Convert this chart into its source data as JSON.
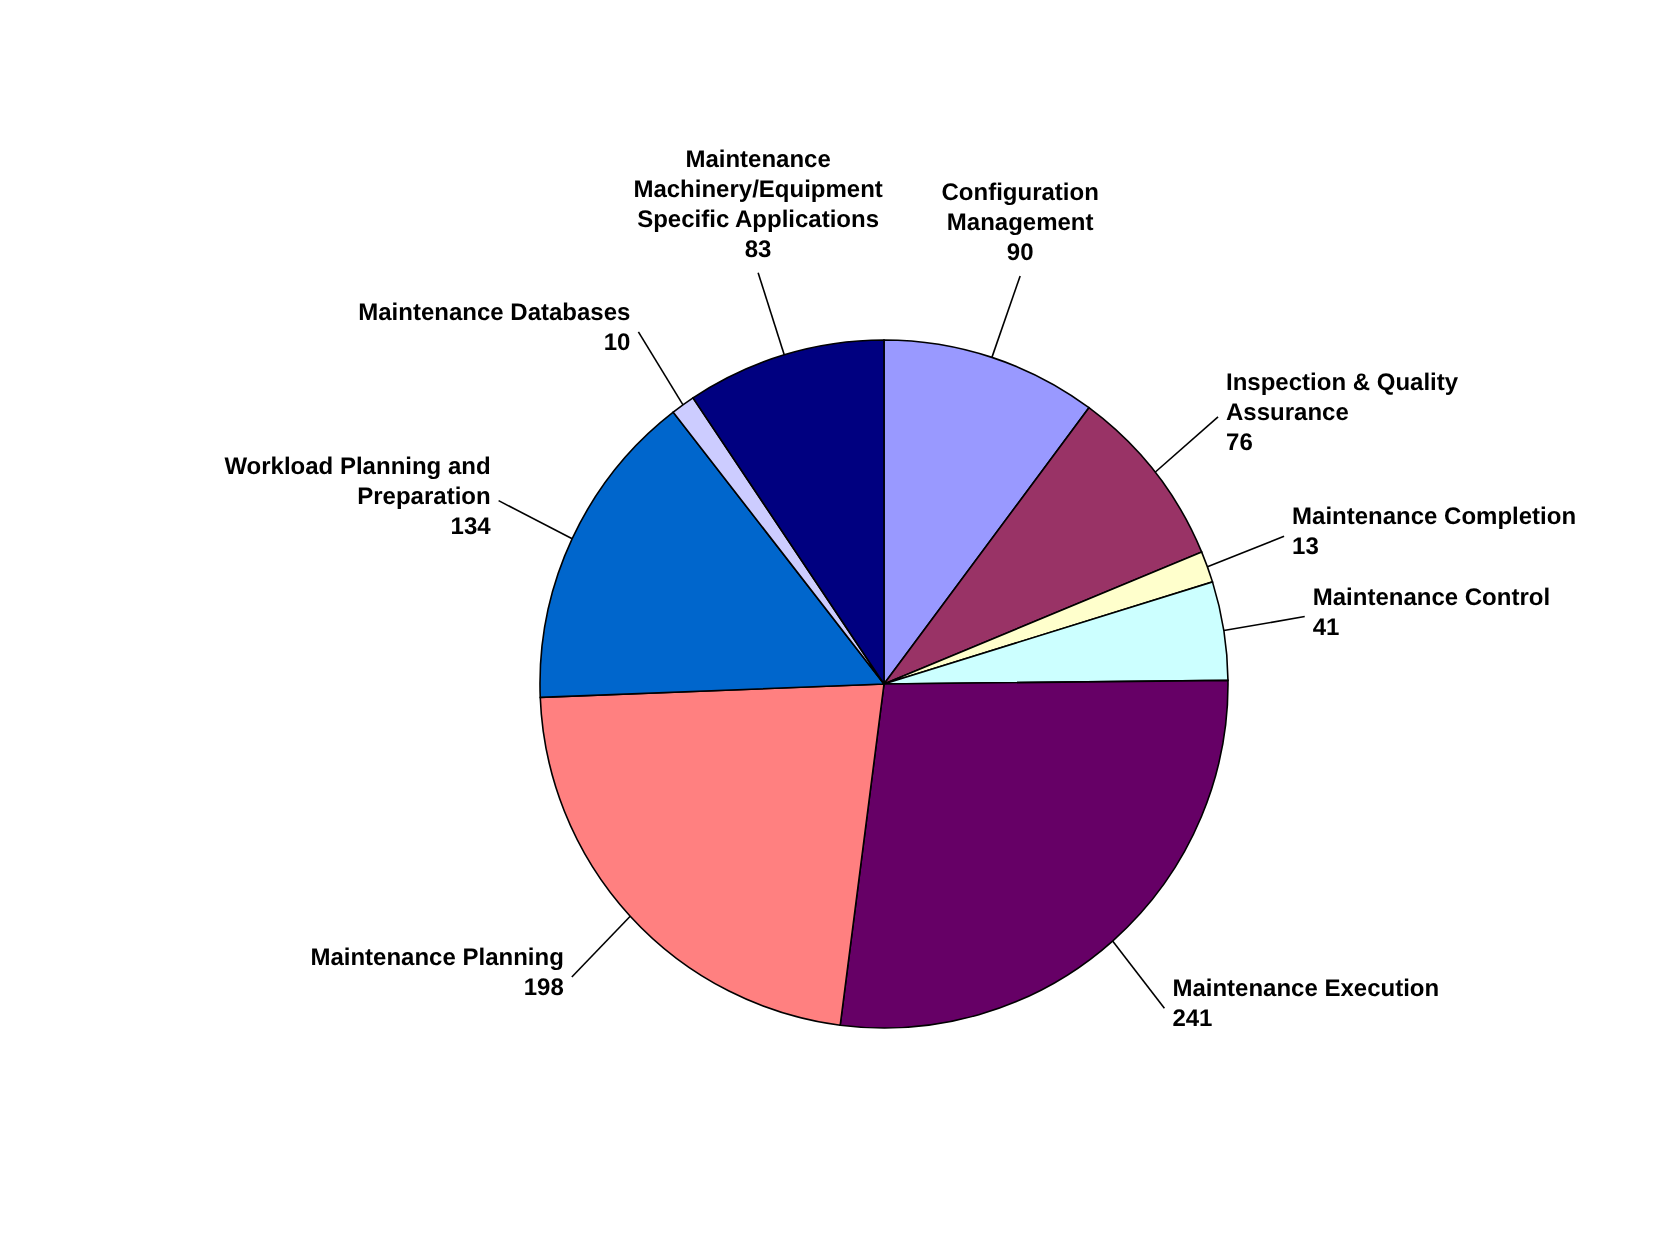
{
  "chart_data": {
    "type": "pie",
    "categories": [
      "Configuration Management",
      "Inspection & Quality Assurance",
      "Maintenance Completion",
      "Maintenance Control",
      "Maintenance Execution",
      "Maintenance Planning",
      "Workload Planning and Preparation",
      "Maintenance Databases",
      "Maintenance Machinery/Equipment Specific Applications"
    ],
    "values": [
      90,
      76,
      13,
      41,
      241,
      198,
      134,
      10,
      83
    ],
    "colors": [
      "#9999ff",
      "#993366",
      "#ffffcc",
      "#ccffff",
      "#660066",
      "#ff8080",
      "#0066cc",
      "#ccccff",
      "#000080"
    ],
    "data_labels": true
  }
}
